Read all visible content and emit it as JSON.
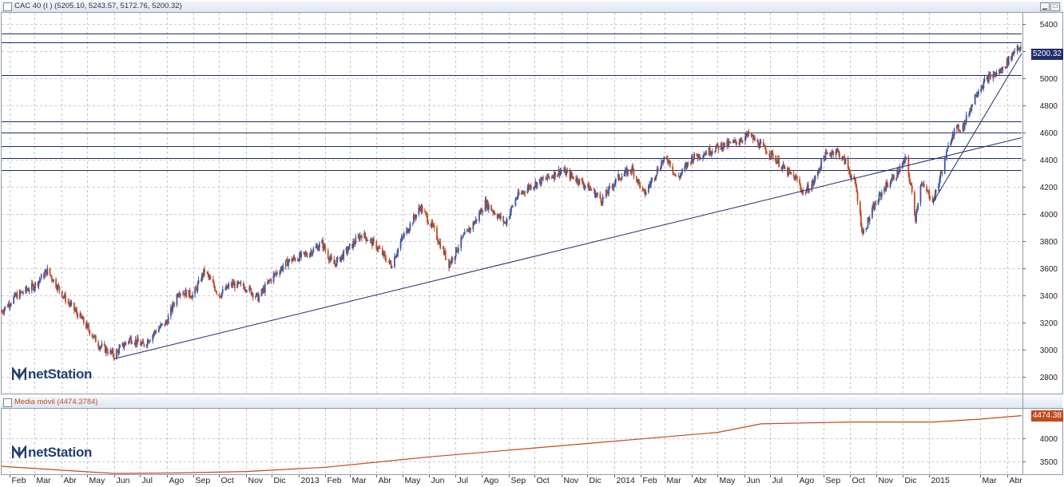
{
  "panels": {
    "price": {
      "title": "CAC 40 (I ) (5205.10, 5243.57, 5172.76, 5200.32)",
      "logo_text": "netStation",
      "last_label": "5200.32",
      "colors": {
        "up": "#3c58a6",
        "down": "#c24a1c",
        "grid": "#b9b9b9",
        "lines": "#1f2d6b",
        "tag_bg": "#1f2d6b"
      }
    },
    "indicator": {
      "title": "Media móvil (4474.3784)",
      "logo_text": "netStation",
      "last_label": "4474.38",
      "colors": {
        "line": "#c24a1c",
        "tag_bg": "#c24a1c"
      }
    }
  },
  "window_buttons": {
    "minimize": "▁",
    "maximize": "□"
  },
  "chart_data": [
    {
      "type": "candlestick",
      "title": "CAC 40 (I ) (5205.10, 5243.57, 5172.76, 5200.32)",
      "last": {
        "open": 5205.1,
        "high": 5243.57,
        "low": 5172.76,
        "close": 5200.32
      },
      "y_ticks": [
        2800,
        3000,
        3200,
        3400,
        3600,
        3800,
        4000,
        4200,
        4400,
        4600,
        4800,
        5000,
        5200,
        5400
      ],
      "ylim": [
        2680,
        5480
      ],
      "x_tick_labels": [
        "Feb",
        "Mar",
        "Abr",
        "May",
        "Jun",
        "Jul",
        "Ago",
        "Sep",
        "Oct",
        "Nov",
        "Dic",
        "2013",
        "Feb",
        "Mar",
        "Abr",
        "May",
        "Jun",
        "Jul",
        "Ago",
        "Sep",
        "Oct",
        "Nov",
        "Dic",
        "2014",
        "Feb",
        "Mar",
        "Abr",
        "May",
        "Jun",
        "Jul",
        "Ago",
        "Sep",
        "Oct",
        "Nov",
        "Dic",
        "2015",
        "Mar",
        "Abr"
      ],
      "x_range": [
        "2012-01-23",
        "2015-04-18"
      ],
      "grid": true,
      "close_path": [
        [
          "2012-01-23",
          3280
        ],
        [
          "2012-02-08",
          3390
        ],
        [
          "2012-03-01",
          3470
        ],
        [
          "2012-03-16",
          3580
        ],
        [
          "2012-04-05",
          3380
        ],
        [
          "2012-04-25",
          3220
        ],
        [
          "2012-05-15",
          3030
        ],
        [
          "2012-06-01",
          2960
        ],
        [
          "2012-06-20",
          3080
        ],
        [
          "2012-07-05",
          3030
        ],
        [
          "2012-07-20",
          3140
        ],
        [
          "2012-08-01",
          3200
        ],
        [
          "2012-08-15",
          3430
        ],
        [
          "2012-09-01",
          3400
        ],
        [
          "2012-09-14",
          3580
        ],
        [
          "2012-10-01",
          3400
        ],
        [
          "2012-10-15",
          3480
        ],
        [
          "2012-11-01",
          3460
        ],
        [
          "2012-11-15",
          3380
        ],
        [
          "2012-12-01",
          3530
        ],
        [
          "2012-12-20",
          3650
        ],
        [
          "2013-01-10",
          3700
        ],
        [
          "2013-01-28",
          3780
        ],
        [
          "2013-02-10",
          3620
        ],
        [
          "2013-02-25",
          3720
        ],
        [
          "2013-03-15",
          3850
        ],
        [
          "2013-04-01",
          3760
        ],
        [
          "2013-04-18",
          3620
        ],
        [
          "2013-05-01",
          3820
        ],
        [
          "2013-05-22",
          4050
        ],
        [
          "2013-06-05",
          3900
        ],
        [
          "2013-06-24",
          3630
        ],
        [
          "2013-07-10",
          3820
        ],
        [
          "2013-07-25",
          3950
        ],
        [
          "2013-08-05",
          4080
        ],
        [
          "2013-08-28",
          3930
        ],
        [
          "2013-09-10",
          4120
        ],
        [
          "2013-09-25",
          4200
        ],
        [
          "2013-10-15",
          4260
        ],
        [
          "2013-11-01",
          4320
        ],
        [
          "2013-11-20",
          4250
        ],
        [
          "2013-12-05",
          4180
        ],
        [
          "2013-12-18",
          4100
        ],
        [
          "2014-01-05",
          4260
        ],
        [
          "2014-01-22",
          4330
        ],
        [
          "2014-02-05",
          4140
        ],
        [
          "2014-02-25",
          4380
        ],
        [
          "2014-03-05",
          4400
        ],
        [
          "2014-03-15",
          4250
        ],
        [
          "2014-04-01",
          4410
        ],
        [
          "2014-04-20",
          4460
        ],
        [
          "2014-05-05",
          4500
        ],
        [
          "2014-05-20",
          4520
        ],
        [
          "2014-06-06",
          4580
        ],
        [
          "2014-06-20",
          4500
        ],
        [
          "2014-07-05",
          4420
        ],
        [
          "2014-07-18",
          4320
        ],
        [
          "2014-08-01",
          4250
        ],
        [
          "2014-08-08",
          4150
        ],
        [
          "2014-08-20",
          4230
        ],
        [
          "2014-09-01",
          4420
        ],
        [
          "2014-09-15",
          4470
        ],
        [
          "2014-09-26",
          4380
        ],
        [
          "2014-10-08",
          4200
        ],
        [
          "2014-10-16",
          3850
        ],
        [
          "2014-10-29",
          4050
        ],
        [
          "2014-11-10",
          4190
        ],
        [
          "2014-11-25",
          4300
        ],
        [
          "2014-12-05",
          4400
        ],
        [
          "2014-12-12",
          4150
        ],
        [
          "2014-12-16",
          3970
        ],
        [
          "2014-12-22",
          4220
        ],
        [
          "2015-01-06",
          4100
        ],
        [
          "2015-01-15",
          4300
        ],
        [
          "2015-01-28",
          4600
        ],
        [
          "2015-02-10",
          4650
        ],
        [
          "2015-02-25",
          4900
        ],
        [
          "2015-03-10",
          5000
        ],
        [
          "2015-03-25",
          5050
        ],
        [
          "2015-04-05",
          5150
        ],
        [
          "2015-04-13",
          5240
        ],
        [
          "2015-04-18",
          5200
        ]
      ],
      "support_lines": [
        {
          "from": [
            "2012-06-01",
            2930
          ],
          "to": [
            "2015-04-18",
            4560
          ]
        },
        {
          "from": [
            "2015-01-05",
            4080
          ],
          "to": [
            "2015-04-18",
            5180
          ]
        }
      ],
      "horizontal_levels": [
        5330,
        5260,
        5020,
        4680,
        4600,
        4500,
        4410,
        4320
      ]
    },
    {
      "type": "line",
      "title": "Media móvil (4474.3784)",
      "last": 4474.38,
      "y_ticks": [
        3500,
        4000
      ],
      "ylim": [
        3250,
        4620
      ],
      "points": [
        [
          "2012-01-23",
          3400
        ],
        [
          "2012-04-01",
          3320
        ],
        [
          "2012-06-01",
          3250
        ],
        [
          "2012-08-15",
          3260
        ],
        [
          "2012-11-01",
          3290
        ],
        [
          "2013-02-01",
          3380
        ],
        [
          "2013-06-01",
          3600
        ],
        [
          "2013-10-01",
          3790
        ],
        [
          "2014-02-01",
          3980
        ],
        [
          "2014-05-01",
          4120
        ],
        [
          "2014-06-20",
          4300
        ],
        [
          "2014-10-01",
          4340
        ],
        [
          "2015-01-05",
          4340
        ],
        [
          "2015-03-01",
          4400
        ],
        [
          "2015-04-18",
          4474
        ]
      ]
    }
  ]
}
